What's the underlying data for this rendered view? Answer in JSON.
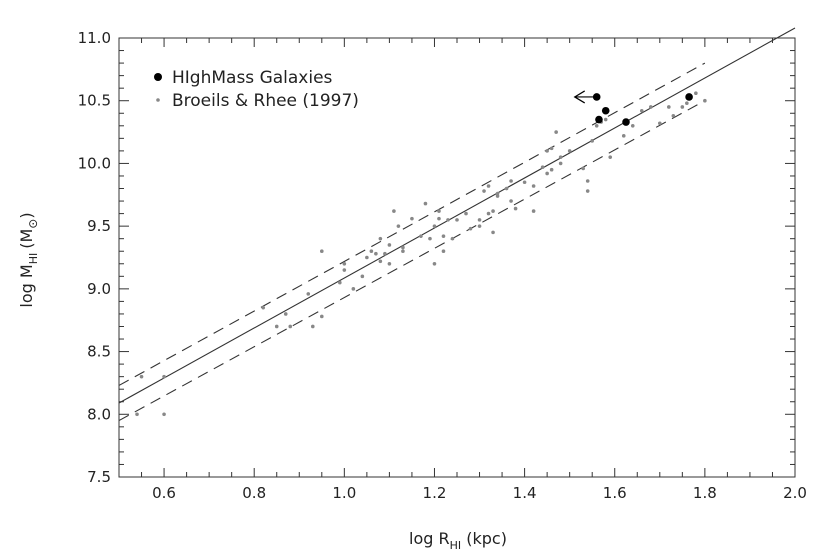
{
  "chart_data": {
    "type": "scatter",
    "title": "",
    "xlabel": {
      "base": "log R",
      "sub": "HI",
      "tail": " (kpc)"
    },
    "ylabel": {
      "base": "log M",
      "sub": "HI",
      "tail": "(M",
      "sym": "⊙",
      "close": ")"
    },
    "xlim": [
      0.5,
      2.0
    ],
    "ylim": [
      7.5,
      11.0
    ],
    "xticks": [
      "0.6",
      "0.8",
      "1.0",
      "1.2",
      "1.4",
      "1.6",
      "1.8",
      "2.0"
    ],
    "yticks": [
      "7.5",
      "8.0",
      "8.5",
      "9.0",
      "9.5",
      "10.0",
      "10.5",
      "11.0"
    ],
    "legend_position": "top-left",
    "series": [
      {
        "name": "HIghMass Galaxies",
        "marker": "filled-circle",
        "color": "#000000",
        "points": [
          [
            1.56,
            10.53,
            "upper-limit"
          ],
          [
            1.565,
            10.35,
            null
          ],
          [
            1.58,
            10.42,
            null
          ],
          [
            1.625,
            10.33,
            null
          ],
          [
            1.765,
            10.53,
            null
          ]
        ]
      },
      {
        "name": "Broeils & Rhee (1997)",
        "marker": "small-dot",
        "color": "#888888",
        "points": [
          [
            0.54,
            8.0
          ],
          [
            0.6,
            8.0
          ],
          [
            0.6,
            8.3
          ],
          [
            0.55,
            8.3
          ],
          [
            0.82,
            8.85
          ],
          [
            0.85,
            8.7
          ],
          [
            0.87,
            8.8
          ],
          [
            0.88,
            8.7
          ],
          [
            0.92,
            8.96
          ],
          [
            0.93,
            8.7
          ],
          [
            0.95,
            8.78
          ],
          [
            0.95,
            9.3
          ],
          [
            0.99,
            9.05
          ],
          [
            1.0,
            9.2
          ],
          [
            1.0,
            9.15
          ],
          [
            1.02,
            9.0
          ],
          [
            1.04,
            9.1
          ],
          [
            1.05,
            9.25
          ],
          [
            1.06,
            9.3
          ],
          [
            1.07,
            9.28
          ],
          [
            1.08,
            9.22
          ],
          [
            1.08,
            9.4
          ],
          [
            1.09,
            9.28
          ],
          [
            1.1,
            9.35
          ],
          [
            1.1,
            9.2
          ],
          [
            1.11,
            9.62
          ],
          [
            1.12,
            9.5
          ],
          [
            1.13,
            9.33
          ],
          [
            1.13,
            9.3
          ],
          [
            1.15,
            9.56
          ],
          [
            1.17,
            9.42
          ],
          [
            1.18,
            9.68
          ],
          [
            1.19,
            9.4
          ],
          [
            1.2,
            9.5
          ],
          [
            1.2,
            9.2
          ],
          [
            1.21,
            9.56
          ],
          [
            1.21,
            9.62
          ],
          [
            1.22,
            9.42
          ],
          [
            1.22,
            9.3
          ],
          [
            1.23,
            9.55
          ],
          [
            1.24,
            9.4
          ],
          [
            1.25,
            9.55
          ],
          [
            1.27,
            9.6
          ],
          [
            1.28,
            9.48
          ],
          [
            1.3,
            9.55
          ],
          [
            1.3,
            9.5
          ],
          [
            1.31,
            9.78
          ],
          [
            1.32,
            9.82
          ],
          [
            1.32,
            9.6
          ],
          [
            1.33,
            9.45
          ],
          [
            1.33,
            9.62
          ],
          [
            1.34,
            9.76
          ],
          [
            1.34,
            9.74
          ],
          [
            1.36,
            9.8
          ],
          [
            1.37,
            9.86
          ],
          [
            1.37,
            9.7
          ],
          [
            1.38,
            9.64
          ],
          [
            1.4,
            9.85
          ],
          [
            1.42,
            9.62
          ],
          [
            1.42,
            9.82
          ],
          [
            1.44,
            9.97
          ],
          [
            1.45,
            10.1
          ],
          [
            1.45,
            9.92
          ],
          [
            1.46,
            9.95
          ],
          [
            1.46,
            10.12
          ],
          [
            1.47,
            10.25
          ],
          [
            1.48,
            10.05
          ],
          [
            1.48,
            10.0
          ],
          [
            1.5,
            10.1
          ],
          [
            1.53,
            9.96
          ],
          [
            1.54,
            9.86
          ],
          [
            1.54,
            9.78
          ],
          [
            1.55,
            10.18
          ],
          [
            1.56,
            10.3
          ],
          [
            1.57,
            10.33
          ],
          [
            1.58,
            10.35
          ],
          [
            1.59,
            10.05
          ],
          [
            1.62,
            10.22
          ],
          [
            1.64,
            10.3
          ],
          [
            1.66,
            10.42
          ],
          [
            1.68,
            10.45
          ],
          [
            1.7,
            10.32
          ],
          [
            1.72,
            10.45
          ],
          [
            1.73,
            10.38
          ],
          [
            1.75,
            10.45
          ],
          [
            1.76,
            10.48
          ],
          [
            1.78,
            10.56
          ],
          [
            1.8,
            10.5
          ]
        ]
      }
    ],
    "fit_lines": [
      {
        "style": "solid",
        "points": [
          [
            0.5,
            8.09
          ],
          [
            2.0,
            11.08
          ]
        ]
      },
      {
        "style": "dashed",
        "points": [
          [
            0.5,
            8.23
          ],
          [
            1.8,
            10.8
          ]
        ]
      },
      {
        "style": "dashed",
        "points": [
          [
            0.5,
            7.95
          ],
          [
            1.8,
            10.5
          ]
        ]
      }
    ]
  }
}
